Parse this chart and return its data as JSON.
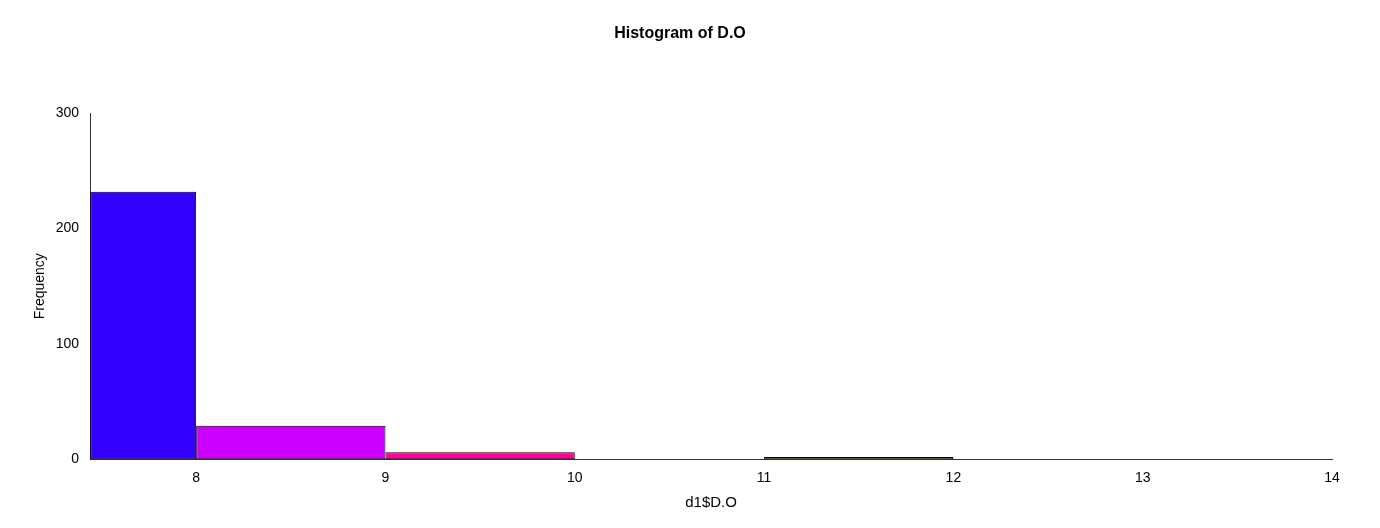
{
  "chart_data": {
    "type": "histogram",
    "title": "Histogram of D.O",
    "xlabel": "d1$D.O",
    "ylabel": "Frequency",
    "bins": [
      7.44,
      8,
      9,
      10,
      11,
      12
    ],
    "values": [
      232,
      29,
      6,
      0,
      2
    ],
    "colors": [
      "#3300ff",
      "#cc00ff",
      "#ff0099",
      "#ff0000",
      "#ff9900"
    ],
    "xlim": [
      7.44,
      14
    ],
    "xticks": [
      8,
      9,
      10,
      11,
      12,
      13,
      14
    ],
    "ylim": [
      0,
      300
    ],
    "yticks": [
      0,
      100,
      200,
      300
    ],
    "grid": false,
    "legend": false
  }
}
